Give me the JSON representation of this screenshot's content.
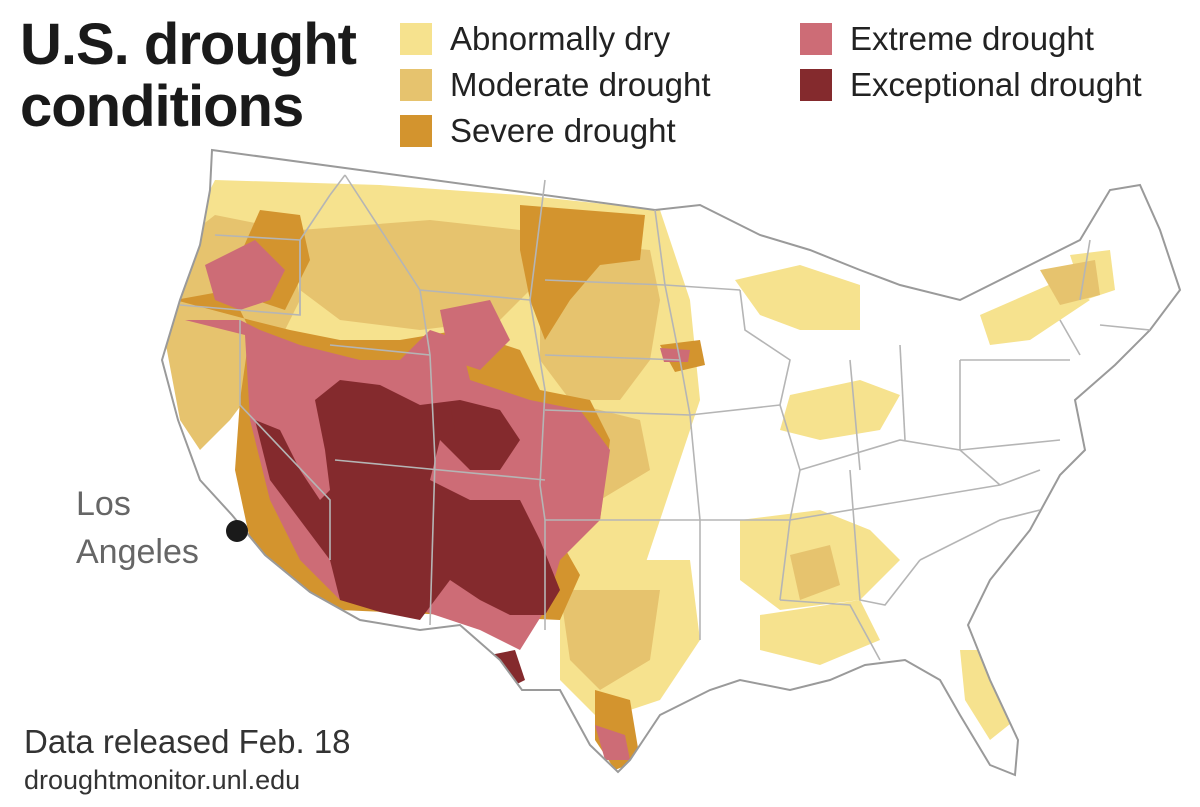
{
  "title": "U.S. drought\nconditions",
  "legend": [
    {
      "label": "Abnormally dry",
      "color": "#f6e28e"
    },
    {
      "label": "Moderate drought",
      "color": "#e6c36e"
    },
    {
      "label": "Severe drought",
      "color": "#d3942e"
    },
    {
      "label": "Extreme drought",
      "color": "#cd6c76"
    },
    {
      "label": "Exceptional drought",
      "color": "#842a2d"
    }
  ],
  "city": {
    "name": "Los\nAngeles"
  },
  "footer": {
    "release": "Data released Feb. 18",
    "source": "droughtmonitor.unl.edu"
  },
  "colors": {
    "state_borders": "#b5b5b5",
    "coast": "#9a9a9a"
  }
}
